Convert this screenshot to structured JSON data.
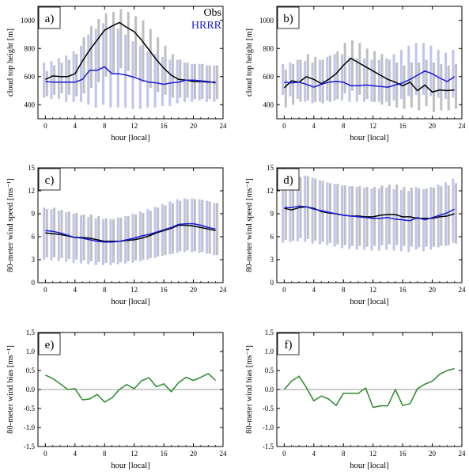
{
  "legend": {
    "obs_label": "Obs",
    "hrrr_label": "HRRR"
  },
  "colors": {
    "obs": "#000000",
    "hrrr": "#1a1ad8",
    "obs_bar": "#bfbfbf",
    "hrrr_bar": "#c0c3ee",
    "bias": "#2a8a2a",
    "zero_line": "#9a9a9a"
  },
  "chart_data": [
    {
      "panel_label": "a)",
      "type": "line",
      "xlabel": "hour [local]",
      "ylabel": "cloud top height [m]",
      "xlim": [
        -1,
        24
      ],
      "ylim": [
        300,
        1100
      ],
      "xticks": [
        0,
        4,
        8,
        12,
        16,
        20,
        24
      ],
      "yticks": [
        400,
        600,
        800,
        1000
      ],
      "x": [
        0,
        1,
        2,
        3,
        4,
        5,
        6,
        7,
        8,
        9,
        10,
        11,
        12,
        13,
        14,
        15,
        16,
        17,
        18,
        19,
        20,
        21,
        22,
        23
      ],
      "series": [
        {
          "name": "Obs",
          "values": [
            580,
            605,
            600,
            600,
            620,
            710,
            790,
            860,
            930,
            960,
            985,
            950,
            920,
            860,
            790,
            720,
            660,
            610,
            580,
            575,
            565,
            565,
            560,
            560
          ]
        },
        {
          "name": "HRRR",
          "values": [
            565,
            560,
            560,
            560,
            560,
            580,
            645,
            645,
            670,
            620,
            620,
            610,
            595,
            575,
            560,
            555,
            545,
            555,
            560,
            575,
            575,
            570,
            565,
            555
          ]
        }
      ],
      "obs_range": [
        [
          460,
          640
        ],
        [
          470,
          680
        ],
        [
          480,
          700
        ],
        [
          470,
          720
        ],
        [
          460,
          760
        ],
        [
          480,
          880
        ],
        [
          520,
          960
        ],
        [
          560,
          1010
        ],
        [
          600,
          1050
        ],
        [
          620,
          1060
        ],
        [
          660,
          1080
        ],
        [
          640,
          1060
        ],
        [
          600,
          1030
        ],
        [
          560,
          1000
        ],
        [
          520,
          940
        ],
        [
          490,
          880
        ],
        [
          470,
          820
        ],
        [
          450,
          760
        ],
        [
          450,
          720
        ],
        [
          450,
          700
        ],
        [
          440,
          690
        ],
        [
          440,
          690
        ],
        [
          440,
          680
        ],
        [
          440,
          680
        ]
      ],
      "hrrr_range": [
        [
          450,
          700
        ],
        [
          440,
          710
        ],
        [
          440,
          730
        ],
        [
          420,
          750
        ],
        [
          420,
          780
        ],
        [
          420,
          820
        ],
        [
          400,
          900
        ],
        [
          380,
          940
        ],
        [
          400,
          980
        ],
        [
          380,
          960
        ],
        [
          380,
          940
        ],
        [
          380,
          900
        ],
        [
          370,
          850
        ],
        [
          370,
          820
        ],
        [
          380,
          780
        ],
        [
          380,
          760
        ],
        [
          390,
          740
        ],
        [
          390,
          720
        ],
        [
          410,
          720
        ],
        [
          420,
          700
        ],
        [
          420,
          690
        ],
        [
          430,
          690
        ],
        [
          420,
          680
        ],
        [
          420,
          680
        ]
      ]
    },
    {
      "panel_label": "b)",
      "type": "line",
      "xlabel": "hour [local]",
      "ylabel": "cloud top height [m]",
      "xlim": [
        -1,
        24
      ],
      "ylim": [
        300,
        1100
      ],
      "xticks": [
        0,
        4,
        8,
        12,
        16,
        20,
        24
      ],
      "yticks": [
        400,
        600,
        800,
        1000
      ],
      "x": [
        0,
        1,
        2,
        3,
        4,
        5,
        6,
        7,
        8,
        9,
        10,
        11,
        12,
        13,
        14,
        15,
        16,
        17,
        18,
        19,
        20,
        21,
        22,
        23
      ],
      "series": [
        {
          "name": "Obs",
          "values": [
            520,
            570,
            560,
            600,
            580,
            550,
            580,
            620,
            680,
            730,
            700,
            670,
            640,
            610,
            580,
            560,
            535,
            560,
            500,
            540,
            490,
            505,
            500,
            505
          ]
        },
        {
          "name": "HRRR",
          "values": [
            560,
            555,
            560,
            545,
            525,
            545,
            560,
            565,
            560,
            535,
            535,
            540,
            535,
            530,
            525,
            540,
            555,
            580,
            610,
            640,
            620,
            590,
            565,
            600
          ]
        }
      ],
      "obs_range": [
        [
          380,
          650
        ],
        [
          400,
          690
        ],
        [
          420,
          720
        ],
        [
          430,
          760
        ],
        [
          420,
          740
        ],
        [
          410,
          720
        ],
        [
          420,
          750
        ],
        [
          440,
          780
        ],
        [
          480,
          840
        ],
        [
          500,
          860
        ],
        [
          470,
          840
        ],
        [
          440,
          800
        ],
        [
          420,
          780
        ],
        [
          400,
          760
        ],
        [
          390,
          720
        ],
        [
          380,
          700
        ],
        [
          370,
          680
        ],
        [
          380,
          700
        ],
        [
          360,
          700
        ],
        [
          390,
          720
        ],
        [
          350,
          700
        ],
        [
          360,
          690
        ],
        [
          360,
          680
        ],
        [
          370,
          690
        ]
      ],
      "hrrr_range": [
        [
          470,
          690
        ],
        [
          460,
          700
        ],
        [
          440,
          720
        ],
        [
          420,
          710
        ],
        [
          410,
          700
        ],
        [
          420,
          720
        ],
        [
          430,
          740
        ],
        [
          430,
          760
        ],
        [
          430,
          760
        ],
        [
          420,
          740
        ],
        [
          420,
          730
        ],
        [
          420,
          730
        ],
        [
          420,
          720
        ],
        [
          420,
          720
        ],
        [
          420,
          730
        ],
        [
          430,
          760
        ],
        [
          440,
          790
        ],
        [
          460,
          820
        ],
        [
          470,
          840
        ],
        [
          470,
          840
        ],
        [
          460,
          820
        ],
        [
          450,
          790
        ],
        [
          440,
          770
        ],
        [
          450,
          790
        ]
      ]
    },
    {
      "panel_label": "c)",
      "type": "line",
      "xlabel": "hour [local]",
      "ylabel": "80-meter wind speed [ms⁻¹]",
      "xlim": [
        -1,
        24
      ],
      "ylim": [
        0,
        15
      ],
      "xticks": [
        0,
        4,
        8,
        12,
        16,
        20,
        24
      ],
      "yticks": [
        0,
        3,
        6,
        9,
        12,
        15
      ],
      "x": [
        0,
        1,
        2,
        3,
        4,
        5,
        6,
        7,
        8,
        9,
        10,
        11,
        12,
        13,
        14,
        15,
        16,
        17,
        18,
        19,
        20,
        21,
        22,
        23
      ],
      "series": [
        {
          "name": "Obs",
          "values": [
            6.5,
            6.4,
            6.3,
            6.1,
            5.9,
            5.9,
            5.8,
            5.6,
            5.4,
            5.4,
            5.4,
            5.5,
            5.6,
            5.8,
            6.1,
            6.5,
            6.8,
            7.1,
            7.5,
            7.5,
            7.4,
            7.2,
            7.0,
            6.8
          ]
        },
        {
          "name": "HRRR",
          "values": [
            6.8,
            6.7,
            6.5,
            6.2,
            5.9,
            5.8,
            5.6,
            5.4,
            5.3,
            5.3,
            5.4,
            5.6,
            5.8,
            6.1,
            6.3,
            6.6,
            6.9,
            7.2,
            7.6,
            7.7,
            7.7,
            7.5,
            7.2,
            7.0
          ]
        }
      ],
      "obs_range": [
        [
          3.3,
          9.6
        ],
        [
          3.3,
          9.8
        ],
        [
          3.2,
          9.5
        ],
        [
          3.1,
          9.3
        ],
        [
          3.0,
          9.1
        ],
        [
          2.9,
          8.9
        ],
        [
          2.8,
          8.9
        ],
        [
          2.7,
          8.7
        ],
        [
          2.6,
          8.4
        ],
        [
          2.6,
          8.3
        ],
        [
          2.7,
          8.5
        ],
        [
          2.8,
          8.7
        ],
        [
          2.9,
          8.9
        ],
        [
          3.0,
          9.1
        ],
        [
          3.2,
          9.4
        ],
        [
          3.4,
          9.8
        ],
        [
          3.6,
          10.1
        ],
        [
          3.8,
          10.4
        ],
        [
          4.1,
          10.7
        ],
        [
          4.2,
          10.9
        ],
        [
          4.1,
          10.9
        ],
        [
          4.0,
          10.8
        ],
        [
          3.8,
          10.6
        ],
        [
          3.6,
          10.4
        ]
      ],
      "hrrr_range": [
        [
          3.0,
          9.8
        ],
        [
          2.9,
          9.6
        ],
        [
          2.8,
          9.4
        ],
        [
          2.7,
          9.2
        ],
        [
          2.6,
          9.0
        ],
        [
          2.5,
          8.8
        ],
        [
          2.4,
          8.6
        ],
        [
          2.3,
          8.4
        ],
        [
          2.3,
          8.3
        ],
        [
          2.3,
          8.3
        ],
        [
          2.4,
          8.5
        ],
        [
          2.5,
          8.7
        ],
        [
          2.6,
          9.0
        ],
        [
          2.8,
          9.3
        ],
        [
          3.0,
          9.6
        ],
        [
          3.2,
          9.9
        ],
        [
          3.5,
          10.3
        ],
        [
          3.7,
          10.6
        ],
        [
          3.9,
          10.9
        ],
        [
          4.0,
          11.0
        ],
        [
          4.0,
          11.0
        ],
        [
          3.9,
          10.9
        ],
        [
          3.8,
          10.7
        ],
        [
          3.6,
          10.4
        ]
      ]
    },
    {
      "panel_label": "d)",
      "type": "line",
      "xlabel": "hour [local]",
      "ylabel": "80-meter wind speed [ms⁻¹]",
      "xlim": [
        -1,
        24
      ],
      "ylim": [
        0,
        15
      ],
      "xticks": [
        0,
        4,
        8,
        12,
        16,
        20,
        24
      ],
      "yticks": [
        0,
        3,
        6,
        9,
        12,
        15
      ],
      "x": [
        0,
        1,
        2,
        3,
        4,
        5,
        6,
        7,
        8,
        9,
        10,
        11,
        12,
        13,
        14,
        15,
        16,
        17,
        18,
        19,
        20,
        21,
        22,
        23
      ],
      "series": [
        {
          "name": "Obs",
          "values": [
            9.7,
            9.5,
            9.8,
            9.9,
            9.7,
            9.3,
            9.1,
            9.0,
            8.8,
            8.7,
            8.7,
            8.6,
            8.6,
            8.8,
            8.9,
            8.9,
            8.6,
            8.6,
            8.4,
            8.4,
            8.4,
            8.6,
            8.7,
            9.0
          ]
        },
        {
          "name": "HRRR",
          "values": [
            9.8,
            9.8,
            10.0,
            9.9,
            9.6,
            9.4,
            9.2,
            9.0,
            8.8,
            8.7,
            8.6,
            8.5,
            8.4,
            8.4,
            8.5,
            8.3,
            8.2,
            8.1,
            8.5,
            8.2,
            8.5,
            8.8,
            9.1,
            9.6
          ]
        }
      ],
      "obs_range": [
        [
          5.6,
          13.6
        ],
        [
          5.5,
          13.5
        ],
        [
          5.8,
          13.8
        ],
        [
          5.7,
          13.9
        ],
        [
          5.5,
          13.6
        ],
        [
          5.3,
          13.3
        ],
        [
          5.2,
          13.0
        ],
        [
          5.0,
          12.9
        ],
        [
          4.9,
          12.7
        ],
        [
          4.8,
          12.6
        ],
        [
          4.8,
          12.6
        ],
        [
          4.7,
          12.5
        ],
        [
          4.8,
          12.5
        ],
        [
          4.9,
          12.7
        ],
        [
          5.0,
          12.8
        ],
        [
          4.9,
          12.8
        ],
        [
          4.8,
          12.5
        ],
        [
          4.7,
          12.4
        ],
        [
          4.6,
          12.3
        ],
        [
          4.7,
          12.3
        ],
        [
          4.7,
          12.4
        ],
        [
          4.8,
          12.6
        ],
        [
          4.9,
          12.7
        ],
        [
          5.1,
          13.0
        ]
      ],
      "hrrr_range": [
        [
          5.2,
          13.9
        ],
        [
          5.3,
          13.8
        ],
        [
          5.4,
          14.0
        ],
        [
          5.3,
          14.0
        ],
        [
          5.1,
          13.7
        ],
        [
          5.0,
          13.4
        ],
        [
          4.9,
          13.1
        ],
        [
          4.7,
          12.9
        ],
        [
          4.5,
          12.7
        ],
        [
          4.4,
          12.6
        ],
        [
          4.3,
          12.5
        ],
        [
          4.3,
          12.4
        ],
        [
          4.2,
          12.3
        ],
        [
          4.2,
          12.3
        ],
        [
          4.3,
          12.4
        ],
        [
          4.2,
          12.2
        ],
        [
          4.1,
          12.1
        ],
        [
          4.0,
          12.0
        ],
        [
          4.3,
          12.5
        ],
        [
          4.1,
          12.2
        ],
        [
          4.3,
          12.5
        ],
        [
          4.6,
          12.8
        ],
        [
          4.8,
          13.1
        ],
        [
          5.2,
          13.6
        ]
      ]
    },
    {
      "panel_label": "e)",
      "type": "line",
      "xlabel": "hour [local]",
      "ylabel": "80-meter wind bias [ms⁻¹]",
      "xlim": [
        -1,
        24
      ],
      "ylim": [
        -1.5,
        1.5
      ],
      "xticks": [
        0,
        4,
        8,
        12,
        16,
        20,
        24
      ],
      "yticks": [
        -1.5,
        -1.0,
        -0.5,
        0.0,
        0.5,
        1.0,
        1.5
      ],
      "x": [
        0,
        1,
        2,
        3,
        4,
        5,
        6,
        7,
        8,
        9,
        10,
        11,
        12,
        13,
        14,
        15,
        16,
        17,
        18,
        19,
        20,
        21,
        22,
        23
      ],
      "series": [
        {
          "name": "",
          "values": [
            0.38,
            0.29,
            0.15,
            0.0,
            0.02,
            -0.27,
            -0.25,
            -0.13,
            -0.33,
            -0.22,
            0.0,
            0.13,
            0.02,
            0.23,
            0.31,
            0.07,
            0.15,
            -0.06,
            0.18,
            0.32,
            0.24,
            0.32,
            0.42,
            0.24
          ]
        }
      ]
    },
    {
      "panel_label": "f)",
      "type": "line",
      "xlabel": "hour [local]",
      "ylabel": "80-meter wind bias [ms⁻¹]",
      "xlim": [
        -1,
        24
      ],
      "ylim": [
        -1.5,
        1.5
      ],
      "xticks": [
        0,
        4,
        8,
        12,
        16,
        20,
        24
      ],
      "yticks": [
        -1.5,
        -1.0,
        -0.5,
        0.0,
        0.5,
        1.0,
        1.5
      ],
      "x": [
        0,
        1,
        2,
        3,
        4,
        5,
        6,
        7,
        8,
        9,
        10,
        11,
        12,
        13,
        14,
        15,
        16,
        17,
        18,
        19,
        20,
        21,
        22,
        23
      ],
      "series": [
        {
          "name": "",
          "values": [
            0.0,
            0.22,
            0.35,
            0.05,
            -0.3,
            -0.17,
            -0.25,
            -0.42,
            -0.1,
            -0.1,
            -0.1,
            0.04,
            -0.47,
            -0.43,
            -0.43,
            0.0,
            -0.42,
            -0.37,
            0.02,
            0.14,
            0.22,
            0.4,
            0.5,
            0.55
          ]
        }
      ]
    }
  ]
}
